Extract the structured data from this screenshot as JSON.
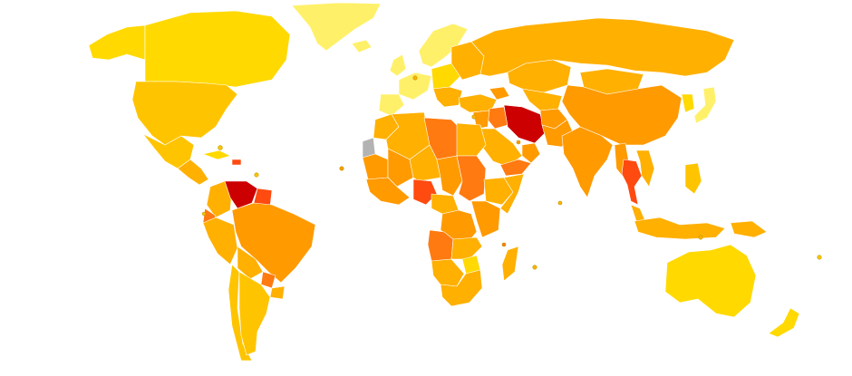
{
  "palette": {
    "very_low": "#fff06a",
    "low": "#ffd900",
    "low_mid": "#ffc400",
    "mid": "#ffb000",
    "mid_high": "#ff9a00",
    "high": "#ff7a10",
    "very_high": "#ff4a10",
    "highest": "#cc0000",
    "no_data": "#b3b3b3"
  },
  "regions": [
    {
      "name": "greenland",
      "level": "very_low"
    },
    {
      "name": "canada",
      "level": "low"
    },
    {
      "name": "alaska",
      "level": "low"
    },
    {
      "name": "usa",
      "level": "low_mid"
    },
    {
      "name": "mexico",
      "level": "low_mid"
    },
    {
      "name": "central-america",
      "level": "mid"
    },
    {
      "name": "cuba",
      "level": "low"
    },
    {
      "name": "haiti",
      "level": "very_high"
    },
    {
      "name": "colombia",
      "level": "mid"
    },
    {
      "name": "venezuela",
      "level": "highest"
    },
    {
      "name": "guyana",
      "level": "very_high"
    },
    {
      "name": "ecuador",
      "level": "high"
    },
    {
      "name": "peru",
      "level": "mid"
    },
    {
      "name": "brazil",
      "level": "mid_high"
    },
    {
      "name": "bolivia",
      "level": "mid"
    },
    {
      "name": "paraguay",
      "level": "high"
    },
    {
      "name": "chile",
      "level": "low_mid"
    },
    {
      "name": "argentina",
      "level": "low_mid"
    },
    {
      "name": "uruguay",
      "level": "mid"
    },
    {
      "name": "iceland",
      "level": "very_low"
    },
    {
      "name": "scandinavia",
      "level": "very_low"
    },
    {
      "name": "uk",
      "level": "very_low"
    },
    {
      "name": "western-europe",
      "level": "very_low"
    },
    {
      "name": "iberia",
      "level": "very_low"
    },
    {
      "name": "central-europe",
      "level": "low"
    },
    {
      "name": "eastern-europe",
      "level": "mid"
    },
    {
      "name": "balkans",
      "level": "mid"
    },
    {
      "name": "russia",
      "level": "mid"
    },
    {
      "name": "kazakhstan",
      "level": "mid"
    },
    {
      "name": "central-asia",
      "level": "mid"
    },
    {
      "name": "turkey",
      "level": "mid"
    },
    {
      "name": "caucasus",
      "level": "mid_high"
    },
    {
      "name": "mongolia",
      "level": "mid"
    },
    {
      "name": "china",
      "level": "mid_high"
    },
    {
      "name": "korea",
      "level": "low"
    },
    {
      "name": "japan",
      "level": "very_low"
    },
    {
      "name": "iran",
      "level": "highest"
    },
    {
      "name": "iraq",
      "level": "high"
    },
    {
      "name": "syria-jordan",
      "level": "mid_high"
    },
    {
      "name": "saudi-arabia",
      "level": "mid"
    },
    {
      "name": "yemen",
      "level": "high"
    },
    {
      "name": "oman",
      "level": "mid_high"
    },
    {
      "name": "afghanistan",
      "level": "mid_high"
    },
    {
      "name": "pakistan",
      "level": "mid_high"
    },
    {
      "name": "india",
      "level": "mid_high"
    },
    {
      "name": "myanmar",
      "level": "mid_high"
    },
    {
      "name": "thailand",
      "level": "very_high"
    },
    {
      "name": "vietnam",
      "level": "mid"
    },
    {
      "name": "malaysia",
      "level": "mid"
    },
    {
      "name": "indonesia",
      "level": "mid"
    },
    {
      "name": "philippines",
      "level": "low_mid"
    },
    {
      "name": "papua-new-guinea",
      "level": "mid"
    },
    {
      "name": "morocco",
      "level": "mid"
    },
    {
      "name": "western-sahara",
      "level": "no_data"
    },
    {
      "name": "algeria",
      "level": "mid"
    },
    {
      "name": "libya",
      "level": "high"
    },
    {
      "name": "egypt",
      "level": "mid"
    },
    {
      "name": "mauritania",
      "level": "mid_high"
    },
    {
      "name": "mali",
      "level": "mid_high"
    },
    {
      "name": "niger",
      "level": "mid"
    },
    {
      "name": "chad",
      "level": "mid_high"
    },
    {
      "name": "sudan",
      "level": "high"
    },
    {
      "name": "west-africa",
      "level": "mid_high"
    },
    {
      "name": "nigeria",
      "level": "very_high"
    },
    {
      "name": "central-africa",
      "level": "mid"
    },
    {
      "name": "ethiopia",
      "level": "mid"
    },
    {
      "name": "somalia",
      "level": "mid"
    },
    {
      "name": "drc",
      "level": "mid_high"
    },
    {
      "name": "angola",
      "level": "high"
    },
    {
      "name": "east-africa",
      "level": "mid_high"
    },
    {
      "name": "zambia",
      "level": "mid"
    },
    {
      "name": "zimbabwe",
      "level": "low"
    },
    {
      "name": "namibia-botswana",
      "level": "mid"
    },
    {
      "name": "south-africa",
      "level": "mid"
    },
    {
      "name": "madagascar",
      "level": "mid"
    },
    {
      "name": "australia",
      "level": "low"
    },
    {
      "name": "new-zealand",
      "level": "low"
    }
  ]
}
